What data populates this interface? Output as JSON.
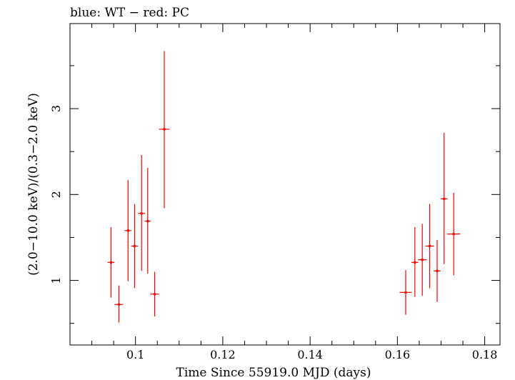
{
  "chart_data": {
    "type": "scatter",
    "title": "blue: WT − red: PC",
    "xlabel": "Time Since 55919.0 MJD (days)",
    "ylabel": "(2.0−10.0 keV)/(0.3−2.0 keV)",
    "xlim": [
      0.085,
      0.1835
    ],
    "ylim": [
      0.248,
      3.99
    ],
    "x_ticks": [
      {
        "value": 0.1,
        "label": "0.1"
      },
      {
        "value": 0.12,
        "label": "0.12"
      },
      {
        "value": 0.14,
        "label": "0.14"
      },
      {
        "value": 0.16,
        "label": "0.16"
      },
      {
        "value": 0.18,
        "label": "0.18"
      }
    ],
    "y_ticks": [
      {
        "value": 1,
        "label": "1"
      },
      {
        "value": 2,
        "label": "2"
      },
      {
        "value": 3,
        "label": "3"
      }
    ],
    "series": [
      {
        "color": "#ff0000",
        "points": [
          {
            "x": 0.0944,
            "xerr": 0.0008,
            "y": 1.21,
            "ylo": 0.8,
            "yhi": 1.62
          },
          {
            "x": 0.0962,
            "xerr": 0.001,
            "y": 0.72,
            "ylo": 0.51,
            "yhi": 0.94
          },
          {
            "x": 0.0983,
            "xerr": 0.0008,
            "y": 1.58,
            "ylo": 0.99,
            "yhi": 2.17
          },
          {
            "x": 0.0998,
            "xerr": 0.0008,
            "y": 1.4,
            "ylo": 0.91,
            "yhi": 1.89
          },
          {
            "x": 0.1014,
            "xerr": 0.0008,
            "y": 1.78,
            "ylo": 1.11,
            "yhi": 2.46
          },
          {
            "x": 0.1028,
            "xerr": 0.0007,
            "y": 1.69,
            "ylo": 1.08,
            "yhi": 2.31
          },
          {
            "x": 0.1044,
            "xerr": 0.001,
            "y": 0.84,
            "ylo": 0.58,
            "yhi": 1.1
          },
          {
            "x": 0.1066,
            "xerr": 0.0012,
            "y": 2.76,
            "ylo": 1.84,
            "yhi": 3.67
          },
          {
            "x": 0.1619,
            "xerr": 0.0014,
            "y": 0.86,
            "ylo": 0.6,
            "yhi": 1.12
          },
          {
            "x": 0.164,
            "xerr": 0.0008,
            "y": 1.21,
            "ylo": 0.81,
            "yhi": 1.62
          },
          {
            "x": 0.1657,
            "xerr": 0.001,
            "y": 1.24,
            "ylo": 0.82,
            "yhi": 1.66
          },
          {
            "x": 0.1674,
            "xerr": 0.001,
            "y": 1.4,
            "ylo": 0.91,
            "yhi": 1.89
          },
          {
            "x": 0.1691,
            "xerr": 0.0008,
            "y": 1.11,
            "ylo": 0.75,
            "yhi": 1.47
          },
          {
            "x": 0.1707,
            "xerr": 0.0008,
            "y": 1.95,
            "ylo": 1.19,
            "yhi": 2.72
          },
          {
            "x": 0.1729,
            "xerr": 0.0015,
            "y": 1.54,
            "ylo": 1.06,
            "yhi": 2.02
          }
        ]
      }
    ],
    "grid": false,
    "legend": "none"
  }
}
